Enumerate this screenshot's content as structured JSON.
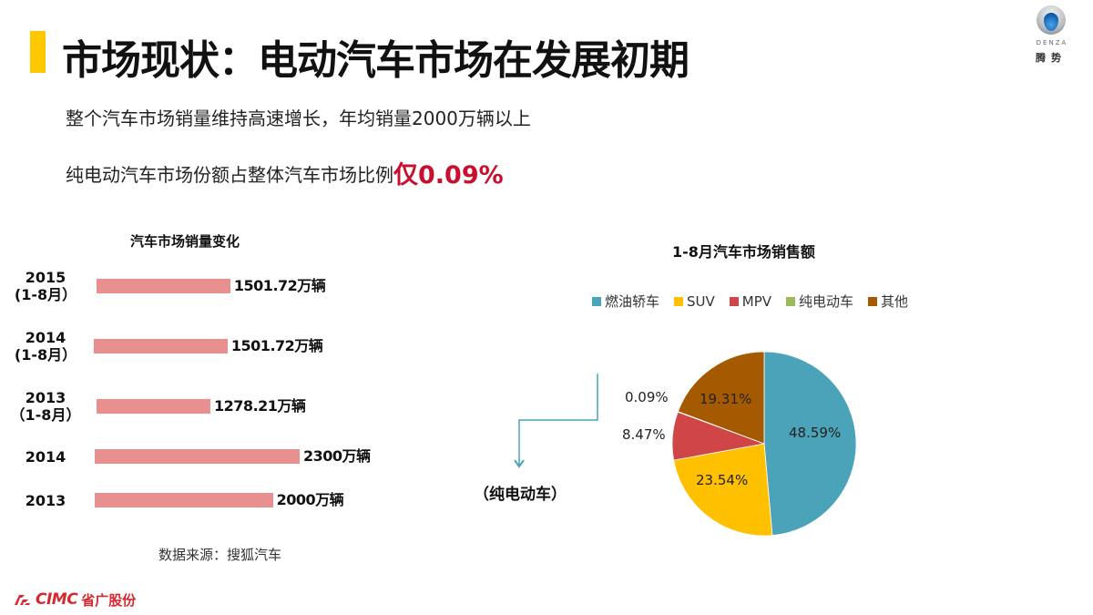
{
  "header": {
    "title": "市场现状：电动汽车市场在发展初期",
    "accent_color": "#ffc800"
  },
  "brand_logo": {
    "wordmark": "DENZA",
    "name_cn": "腾势"
  },
  "bullets": [
    {
      "text": "整个汽车市场销量维持高速增长，年均销量2000万辆以上"
    },
    {
      "text": "纯电动汽车市场份额占整体汽车市场比例",
      "highlight": "仅0.09%",
      "highlight_color": "#c8102e"
    }
  ],
  "bar_section": {
    "title": "汽车市场销量变化",
    "source": "数据来源：搜狐汽车"
  },
  "pie_section": {
    "title": "1-8月汽车市场销售额",
    "callout": "（纯电动车）"
  },
  "footer": {
    "logo_en": "CIMC",
    "logo_cn": "省广股份",
    "logo_color": "#d7282e"
  },
  "chart_data": [
    {
      "type": "bar",
      "orientation": "horizontal",
      "title": "汽车市场销量变化",
      "categories": [
        "2015（1-8月）",
        "2014（1-8月）",
        "2013（1-8月）",
        "2014",
        "2013"
      ],
      "category_lines": [
        [
          "2015",
          "(1-8月）"
        ],
        [
          "2014",
          "(1-8月）"
        ],
        [
          "2013",
          "（1-8月）"
        ],
        [
          "2014"
        ],
        [
          "2013"
        ]
      ],
      "values": [
        1501.72,
        1501.72,
        1278.21,
        2300,
        2000
      ],
      "value_labels": [
        "1501.72万辆",
        "1501.72万辆",
        "1278.21万辆",
        "2300万辆",
        "2000万辆"
      ],
      "unit": "万辆",
      "bar_color": "#e89090",
      "xlabel": "",
      "ylabel": "",
      "grid": false,
      "source": "数据来源：搜狐汽车"
    },
    {
      "type": "pie",
      "title": "1-8月汽车市场销售额",
      "legend_position": "top",
      "slices": [
        {
          "label": "燃油轿车",
          "value": 48.59,
          "display": "48.59%",
          "color": "#4aa3b8"
        },
        {
          "label": "SUV",
          "value": 23.54,
          "display": "23.54%",
          "color": "#ffc000"
        },
        {
          "label": "MPV",
          "value": 8.47,
          "display": "8.47%",
          "color": "#d04545"
        },
        {
          "label": "纯电动车",
          "value": 0.09,
          "display": "0.09%",
          "color": "#9bbb59"
        },
        {
          "label": "其他",
          "value": 19.31,
          "display": "19.31%",
          "color": "#a65a00"
        }
      ],
      "annotation": "（纯电动车）"
    }
  ]
}
